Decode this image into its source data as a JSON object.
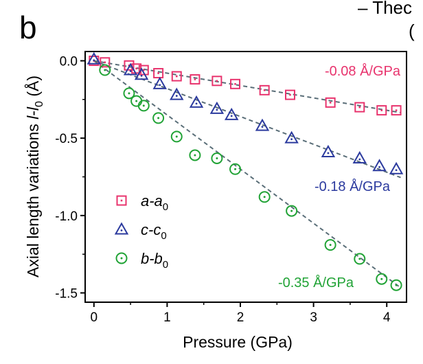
{
  "panel_label": "b",
  "corner_text": {
    "line1": "– Thec",
    "line2": "("
  },
  "chart_data": {
    "type": "scatter",
    "xlabel": "Pressure (GPa)",
    "ylabel": "Axial length variations l-l0 (Å)",
    "ylabel_parts": {
      "prefix": "Axial length variations ",
      "l": "l",
      "minus": "-",
      "l0": "l",
      "sub0": "0",
      "unit": " (Å)"
    },
    "xlim": [
      -0.12,
      4.27
    ],
    "ylim": [
      -1.56,
      0.06
    ],
    "xticks": [
      0,
      1,
      2,
      3,
      4
    ],
    "yticks": [
      0.0,
      -0.5,
      -1.0,
      -1.5
    ],
    "xtick_labels": [
      "0",
      "1",
      "2",
      "3",
      "4"
    ],
    "ytick_labels": [
      "0.0",
      "-0.5",
      "-1.0",
      "-1.5"
    ],
    "grid": false,
    "legend_position": "lower-left",
    "series": [
      {
        "name": "a-a0",
        "name_main": "a-a",
        "name_sub": "0",
        "marker": "square",
        "color": "#E8336D",
        "x": [
          0.0,
          0.15,
          0.48,
          0.58,
          0.68,
          0.88,
          1.13,
          1.38,
          1.68,
          1.93,
          2.33,
          2.68,
          3.23,
          3.63,
          3.93,
          4.13
        ],
        "y": [
          0.0,
          -0.01,
          -0.03,
          -0.05,
          -0.06,
          -0.08,
          -0.1,
          -0.12,
          -0.13,
          -0.15,
          -0.19,
          -0.22,
          -0.27,
          -0.3,
          -0.32,
          -0.32
        ],
        "fit_slope": -0.08,
        "fit_label": "-0.08 Å/GPa"
      },
      {
        "name": "c-c0",
        "name_main": "c-c",
        "name_sub": "0",
        "marker": "triangle",
        "color": "#2B3A9E",
        "x": [
          0.0,
          0.5,
          0.65,
          0.9,
          1.13,
          1.4,
          1.68,
          1.88,
          2.3,
          2.7,
          3.2,
          3.63,
          3.9,
          4.13
        ],
        "y": [
          0.01,
          -0.06,
          -0.09,
          -0.15,
          -0.22,
          -0.27,
          -0.31,
          -0.35,
          -0.42,
          -0.5,
          -0.59,
          -0.63,
          -0.68,
          -0.7
        ],
        "fit_slope": -0.18,
        "fit_label": "-0.18 Å/GPa"
      },
      {
        "name": "b-b0",
        "name_main": "b-b",
        "name_sub": "0",
        "marker": "circle",
        "color": "#21A336",
        "x": [
          0.15,
          0.48,
          0.58,
          0.68,
          0.88,
          1.13,
          1.38,
          1.68,
          1.93,
          2.33,
          2.7,
          3.23,
          3.63,
          3.93,
          4.13
        ],
        "y": [
          -0.06,
          -0.21,
          -0.26,
          -0.29,
          -0.37,
          -0.49,
          -0.61,
          -0.63,
          -0.7,
          -0.88,
          -0.97,
          -1.19,
          -1.28,
          -1.41,
          -1.45
        ],
        "fit_slope": -0.35,
        "fit_label": "-0.35 Å/GPa"
      }
    ]
  },
  "colors": {
    "fit_line": "#5A6E78",
    "axis": "#000000"
  }
}
